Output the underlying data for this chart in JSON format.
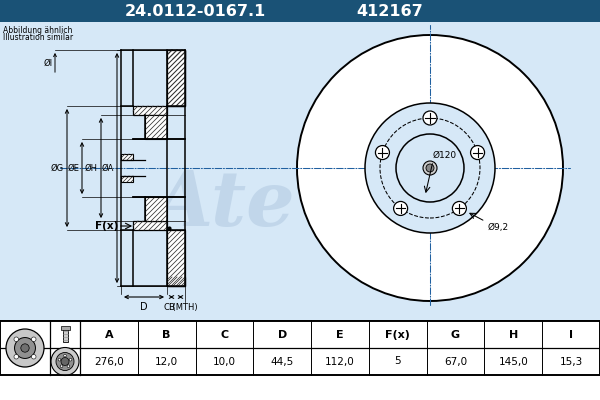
{
  "title_part_number": "24.0112-0167.1",
  "title_ref": "412167",
  "subtitle1": "Abbildung ähnlich",
  "subtitle2": "Illustration similar",
  "header_bg": "#1a5276",
  "header_text_color": "#ffffff",
  "table_headers": [
    "A",
    "B",
    "C",
    "D",
    "E",
    "F(x)",
    "G",
    "H",
    "I"
  ],
  "table_values": [
    "276,0",
    "12,0",
    "10,0",
    "44,5",
    "112,0",
    "5",
    "67,0",
    "145,0",
    "15,3"
  ],
  "label_phi120": "Ø120",
  "label_phi92": "Ø9,2",
  "label_cMTH": "C (MTH)",
  "bg_color": "#d6e8f7",
  "line_color": "#000000",
  "centerline_color": "#2060a0",
  "hatch_color": "#333333",
  "ate_watermark": "#b0c8e0"
}
